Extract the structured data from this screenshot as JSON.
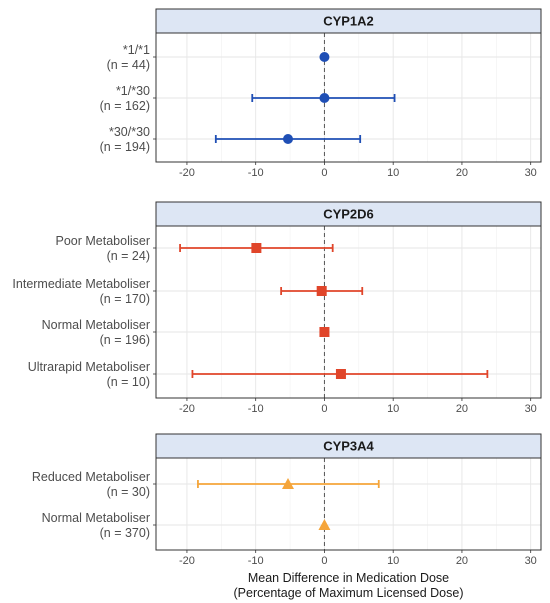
{
  "chart_data": {
    "type": "forest",
    "x_label_lines": [
      "Mean Difference in Medication Dose",
      "(Percentage of Maximum Licensed Dose)"
    ],
    "xlim": [
      -24.5,
      31.5
    ],
    "x_ticks": [
      -20,
      -10,
      0,
      10,
      20,
      30
    ],
    "reference_line": 0,
    "grid": true,
    "panels": [
      {
        "title": "CYP1A2",
        "marker": "circle",
        "color": "#1f4fb5",
        "rows": [
          {
            "label": "*1/*1",
            "n": "(n = 44)",
            "estimate": 0,
            "lower": null,
            "upper": null
          },
          {
            "label": "*1/*30",
            "n": "(n = 162)",
            "estimate": 0,
            "lower": -10.5,
            "upper": 10.2
          },
          {
            "label": "*30/*30",
            "n": "(n = 194)",
            "estimate": -5.3,
            "lower": -15.8,
            "upper": 5.2
          }
        ]
      },
      {
        "title": "CYP2D6",
        "marker": "square",
        "color": "#e0452a",
        "rows": [
          {
            "label": "Poor Metaboliser",
            "n": "(n = 24)",
            "estimate": -9.9,
            "lower": -21.0,
            "upper": 1.2
          },
          {
            "label": "Intermediate Metaboliser",
            "n": "(n = 170)",
            "estimate": -0.4,
            "lower": -6.3,
            "upper": 5.5
          },
          {
            "label": "Normal Metaboliser",
            "n": "(n = 196)",
            "estimate": 0,
            "lower": null,
            "upper": null
          },
          {
            "label": "Ultrarapid Metaboliser",
            "n": "(n = 10)",
            "estimate": 2.4,
            "lower": -19.2,
            "upper": 23.7
          }
        ]
      },
      {
        "title": "CYP3A4",
        "marker": "triangle",
        "color": "#f5a53a",
        "rows": [
          {
            "label": "Reduced Metaboliser",
            "n": "(n = 30)",
            "estimate": -5.3,
            "lower": -18.4,
            "upper": 7.9
          },
          {
            "label": "Normal Metaboliser",
            "n": "(n = 370)",
            "estimate": 0,
            "lower": null,
            "upper": null
          }
        ]
      }
    ]
  }
}
